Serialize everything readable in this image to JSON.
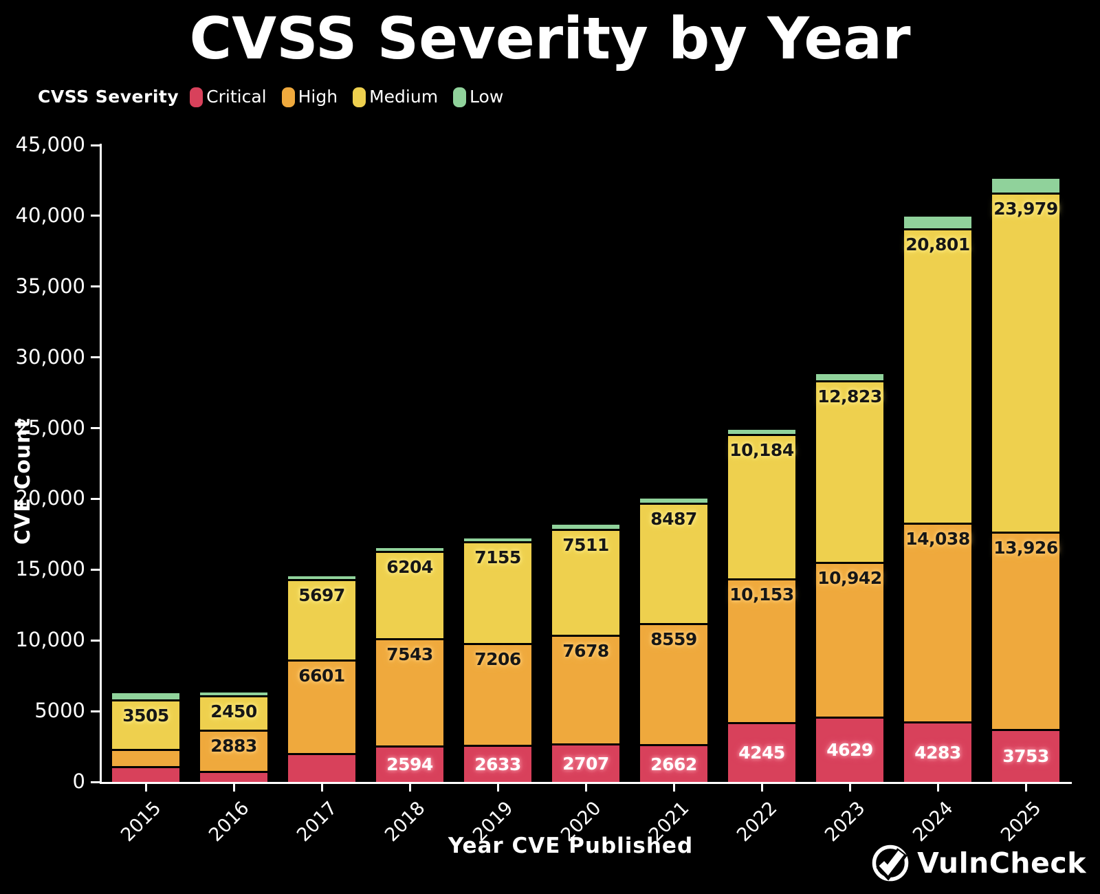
{
  "title": "CVSS Severity by Year",
  "legend": {
    "title": "CVSS Severity",
    "items": [
      {
        "label": "Critical",
        "color": "#d8415b"
      },
      {
        "label": "High",
        "color": "#efa93d"
      },
      {
        "label": "Medium",
        "color": "#eed04e"
      },
      {
        "label": "Low",
        "color": "#90d29b"
      }
    ]
  },
  "y_axis": {
    "label": "CVE Count",
    "tick_values": [
      0,
      5000,
      10000,
      15000,
      20000,
      25000,
      30000,
      35000,
      40000,
      45000
    ],
    "tick_labels": [
      "0",
      "5000",
      "10,000",
      "15,000",
      "20,000",
      "25,000",
      "30,000",
      "35,000",
      "40,000",
      "45,000"
    ]
  },
  "x_axis": {
    "label": "Year CVE Published"
  },
  "brand": {
    "name": "VulnCheck"
  },
  "chart_data": {
    "type": "bar",
    "stacked": true,
    "title": "CVSS Severity by Year",
    "xlabel": "Year CVE Published",
    "ylabel": "CVE Count",
    "ylim": [
      0,
      45000
    ],
    "grid": false,
    "legend_position": "top-left",
    "categories": [
      "2015",
      "2016",
      "2017",
      "2018",
      "2019",
      "2020",
      "2021",
      "2022",
      "2023",
      "2024",
      "2025"
    ],
    "series": [
      {
        "name": "Critical",
        "color": "#d8415b",
        "label_color": "#ffffff",
        "label_glow": "#ef7e92",
        "values": [
          1100,
          800,
          2050,
          2594,
          2633,
          2707,
          2662,
          4245,
          4629,
          4283,
          3753
        ],
        "labels": [
          "",
          "",
          "",
          "2594",
          "2633",
          "2707",
          "2662",
          "4245",
          "4629",
          "4283",
          "3753"
        ]
      },
      {
        "name": "High",
        "color": "#efa93d",
        "label_color": "#161616",
        "label_glow": "#ffc96e",
        "values": [
          1215,
          2883,
          6601,
          7543,
          7206,
          7678,
          8559,
          10153,
          10942,
          14038,
          13926
        ],
        "labels": [
          "",
          "2883",
          "6601",
          "7543",
          "7206",
          "7678",
          "8559",
          "10,153",
          "10,942",
          "14,038",
          "13,926"
        ]
      },
      {
        "name": "Medium",
        "color": "#eed04e",
        "label_color": "#161616",
        "label_glow": "#fbe87e",
        "values": [
          3505,
          2450,
          5697,
          6204,
          7155,
          7511,
          8487,
          10184,
          12823,
          20801,
          23979
        ],
        "labels": [
          "3505",
          "2450",
          "5697",
          "6204",
          "7155",
          "7511",
          "8487",
          "10,184",
          "12,823",
          "20,801",
          "23,979"
        ]
      },
      {
        "name": "Low",
        "color": "#90d29b",
        "label_color": "#161616",
        "label_glow": "#c9f0cf",
        "values": [
          600,
          350,
          350,
          320,
          350,
          450,
          480,
          450,
          550,
          950,
          1100
        ],
        "labels": [
          "",
          "",
          "",
          "",
          "",
          "",
          "",
          "",
          "",
          "",
          ""
        ]
      }
    ]
  }
}
